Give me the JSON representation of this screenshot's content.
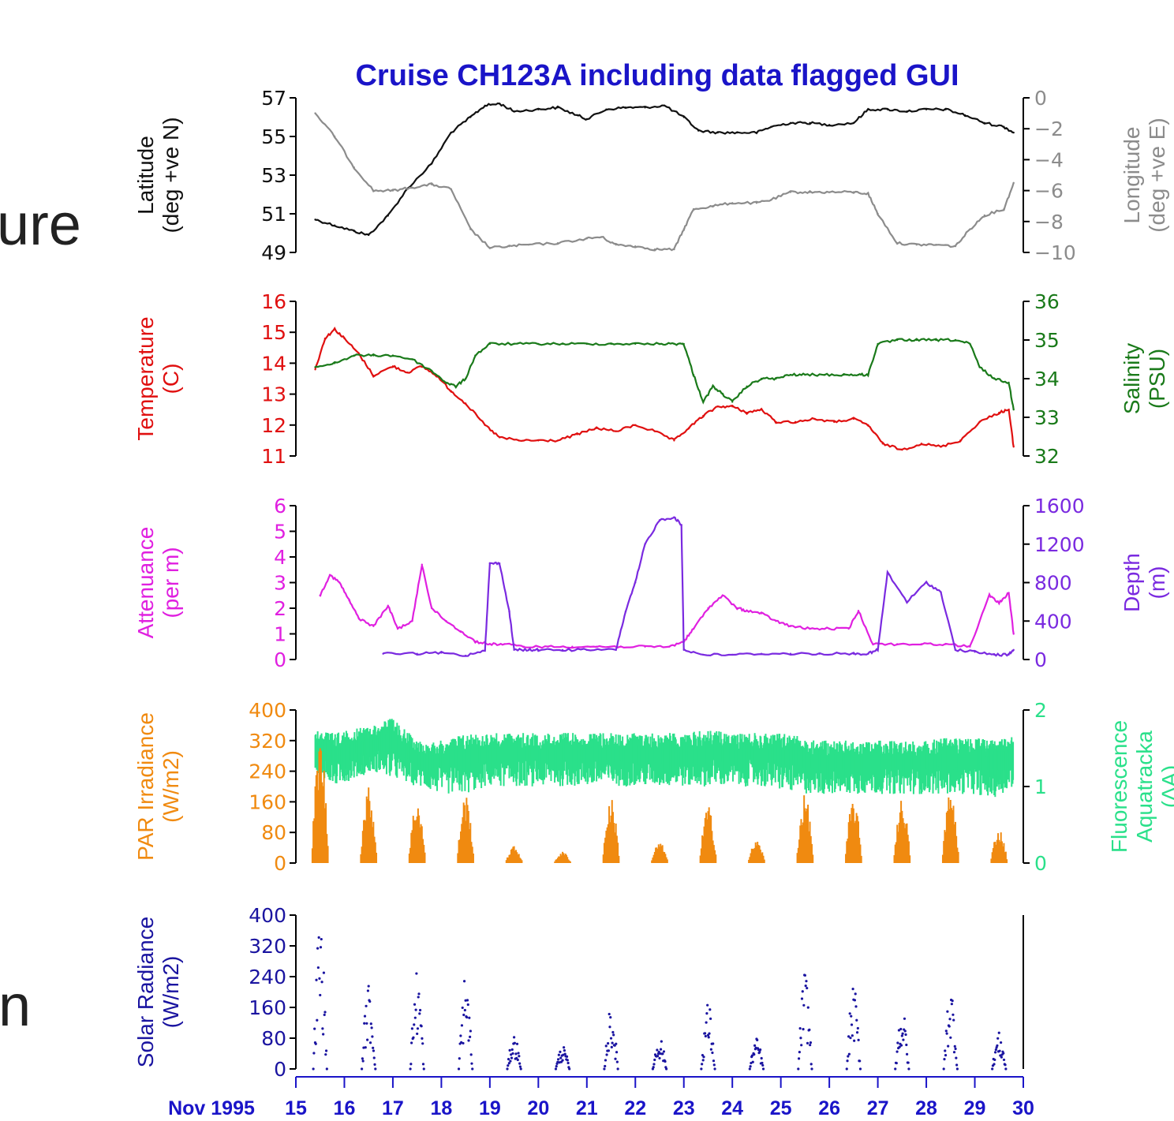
{
  "page_fragments": [
    "ure",
    "n"
  ],
  "chart_data": {
    "type": "line",
    "title": "Cruise CH123A including data flagged GUI",
    "x_axis": {
      "label": "Nov 1995",
      "ticks": [
        "15",
        "16",
        "17",
        "18",
        "19",
        "20",
        "21",
        "22",
        "23",
        "24",
        "25",
        "26",
        "27",
        "28",
        "29",
        "30"
      ],
      "range": [
        15,
        30
      ]
    },
    "panels": [
      {
        "left": {
          "label": [
            "Latitude",
            "(deg +ve N)"
          ],
          "color": "#111111",
          "range": [
            49,
            57
          ],
          "ticks": [
            "57",
            "55",
            "53",
            "51",
            "49"
          ],
          "tick_values": [
            57,
            55,
            53,
            51,
            49
          ]
        },
        "right": {
          "label": [
            "Longitude",
            "(deg +ve E)"
          ],
          "color": "#8c8c8c",
          "range": [
            -10,
            0
          ],
          "ticks": [
            "0",
            "−2",
            "−4",
            "−6",
            "−8",
            "−10"
          ],
          "tick_values": [
            0,
            -2,
            -4,
            -6,
            -8,
            -10
          ]
        },
        "series": [
          {
            "name": "Latitude",
            "axis": "left",
            "color": "#111111",
            "type": "line",
            "x": [
              15.4,
              15.8,
              16.2,
              16.5,
              16.9,
              17.3,
              17.8,
              18.2,
              18.6,
              18.9,
              19.2,
              19.5,
              20.0,
              20.4,
              20.8,
              21.0,
              21.4,
              21.8,
              22.2,
              22.6,
              23.0,
              23.3,
              23.7,
              24.1,
              24.5,
              24.8,
              25.2,
              25.6,
              26.0,
              26.5,
              26.8,
              27.2,
              27.6,
              28.0,
              28.4,
              28.8,
              29.2,
              29.6,
              29.8
            ],
            "y": [
              50.7,
              50.4,
              50.1,
              49.9,
              50.9,
              52.3,
              53.6,
              55.2,
              56.0,
              56.6,
              56.7,
              56.3,
              56.4,
              56.5,
              56.1,
              55.9,
              56.4,
              56.5,
              56.5,
              56.6,
              56.0,
              55.3,
              55.2,
              55.2,
              55.2,
              55.5,
              55.7,
              55.7,
              55.6,
              55.7,
              56.4,
              56.4,
              56.3,
              56.4,
              56.4,
              56.1,
              55.7,
              55.5,
              55.2
            ]
          },
          {
            "name": "Longitude",
            "axis": "right",
            "color": "#8c8c8c",
            "type": "line",
            "x": [
              15.4,
              15.8,
              16.2,
              16.6,
              17.0,
              17.4,
              17.8,
              18.2,
              18.6,
              19.0,
              19.4,
              19.8,
              20.4,
              21.0,
              21.3,
              21.6,
              22.0,
              22.4,
              22.8,
              23.0,
              23.2,
              23.6,
              24.0,
              24.5,
              24.8,
              25.2,
              25.6,
              26.0,
              26.5,
              26.8,
              27.0,
              27.4,
              27.8,
              28.2,
              28.6,
              28.9,
              29.2,
              29.6,
              29.8
            ],
            "y": [
              -1.0,
              -2.5,
              -4.5,
              -6.0,
              -6.0,
              -5.8,
              -5.6,
              -5.9,
              -8.5,
              -9.7,
              -9.6,
              -9.5,
              -9.4,
              -9.1,
              -9.0,
              -9.5,
              -9.6,
              -9.8,
              -9.8,
              -8.5,
              -7.2,
              -7.0,
              -6.8,
              -6.8,
              -6.6,
              -6.1,
              -6.1,
              -6.1,
              -6.1,
              -6.2,
              -7.5,
              -9.4,
              -9.5,
              -9.5,
              -9.6,
              -8.5,
              -7.6,
              -7.2,
              -5.5
            ]
          }
        ]
      },
      {
        "left": {
          "label": [
            "Temperature",
            "(C)"
          ],
          "color": "#e01010",
          "range": [
            11,
            16
          ],
          "ticks": [
            "16",
            "15",
            "14",
            "13",
            "12",
            "11"
          ],
          "tick_values": [
            16,
            15,
            14,
            13,
            12,
            11
          ]
        },
        "right": {
          "label": [
            "Salinity",
            "(PSU)"
          ],
          "color": "#1a7a1a",
          "range": [
            32,
            36
          ],
          "ticks": [
            "36",
            "35",
            "34",
            "33",
            "32"
          ],
          "tick_values": [
            36,
            35,
            34,
            33,
            32
          ]
        },
        "series": [
          {
            "name": "Temperature",
            "axis": "left",
            "color": "#e01010",
            "type": "line",
            "x": [
              15.4,
              15.6,
              15.8,
              16.0,
              16.3,
              16.6,
              17.0,
              17.3,
              17.6,
              17.9,
              18.2,
              18.5,
              18.9,
              19.2,
              19.6,
              20.0,
              20.4,
              20.8,
              21.2,
              21.6,
              22.0,
              22.4,
              22.8,
              23.1,
              23.4,
              23.7,
              24.0,
              24.3,
              24.6,
              24.9,
              25.3,
              25.7,
              26.1,
              26.5,
              26.8,
              27.1,
              27.5,
              27.9,
              28.3,
              28.7,
              29.1,
              29.5,
              29.7,
              29.8
            ],
            "y": [
              13.8,
              14.8,
              15.1,
              14.8,
              14.3,
              13.6,
              13.9,
              13.7,
              13.9,
              13.6,
              13.1,
              12.7,
              12.0,
              11.6,
              11.5,
              11.5,
              11.5,
              11.7,
              11.9,
              11.8,
              12.0,
              11.8,
              11.5,
              11.9,
              12.3,
              12.6,
              12.6,
              12.4,
              12.5,
              12.1,
              12.1,
              12.2,
              12.1,
              12.2,
              12.0,
              11.4,
              11.2,
              11.4,
              11.3,
              11.5,
              12.1,
              12.4,
              12.5,
              11.3
            ]
          },
          {
            "name": "Salinity",
            "axis": "right",
            "color": "#1a7a1a",
            "type": "line",
            "x": [
              15.4,
              15.8,
              16.2,
              16.6,
              17.0,
              17.4,
              17.8,
              18.1,
              18.3,
              18.5,
              18.7,
              19.0,
              19.5,
              20.0,
              20.5,
              21.0,
              21.5,
              22.0,
              22.5,
              22.8,
              23.0,
              23.2,
              23.4,
              23.6,
              23.8,
              24.0,
              24.3,
              24.6,
              24.9,
              25.2,
              25.5,
              25.9,
              26.3,
              26.6,
              26.8,
              27.0,
              27.4,
              27.8,
              28.2,
              28.6,
              28.9,
              29.1,
              29.4,
              29.7,
              29.8
            ],
            "y": [
              34.3,
              34.4,
              34.6,
              34.6,
              34.6,
              34.5,
              34.2,
              33.9,
              33.8,
              34.0,
              34.6,
              34.9,
              34.9,
              34.9,
              34.9,
              34.9,
              34.9,
              34.9,
              34.9,
              34.9,
              34.9,
              34.1,
              33.4,
              33.8,
              33.6,
              33.4,
              33.8,
              34.0,
              34.0,
              34.1,
              34.1,
              34.1,
              34.1,
              34.1,
              34.1,
              34.9,
              35.0,
              35.0,
              35.0,
              35.0,
              34.9,
              34.3,
              34.0,
              33.9,
              33.2
            ]
          }
        ]
      },
      {
        "left": {
          "label": [
            "Attenuance",
            "(per m)"
          ],
          "color": "#e020e0",
          "range": [
            0,
            6
          ],
          "ticks": [
            "6",
            "5",
            "4",
            "3",
            "2",
            "1",
            "0"
          ],
          "tick_values": [
            6,
            5,
            4,
            3,
            2,
            1,
            0
          ]
        },
        "right": {
          "label": [
            "Depth",
            "(m)"
          ],
          "color": "#7a2ae0",
          "range": [
            0,
            1600
          ],
          "ticks": [
            "1600",
            "1200",
            "800",
            "400",
            "0"
          ],
          "tick_values": [
            1600,
            1200,
            800,
            400,
            0
          ]
        },
        "series": [
          {
            "name": "Attenuance",
            "axis": "left",
            "color": "#e020e0",
            "type": "line",
            "x": [
              15.5,
              15.7,
              15.9,
              16.1,
              16.3,
              16.6,
              16.9,
              17.1,
              17.4,
              17.6,
              17.8,
              18.1,
              18.4,
              18.7,
              19.0,
              19.3,
              19.7,
              20.2,
              20.7,
              21.2,
              21.7,
              22.2,
              22.7,
              23.0,
              23.2,
              23.5,
              23.8,
              24.1,
              24.3,
              24.6,
              24.9,
              25.2,
              25.6,
              26.0,
              26.4,
              26.6,
              26.9,
              27.4,
              27.9,
              28.4,
              28.9,
              29.3,
              29.5,
              29.7,
              29.8
            ],
            "y": [
              2.5,
              3.3,
              3.0,
              2.3,
              1.6,
              1.3,
              2.1,
              1.2,
              1.5,
              3.7,
              2.0,
              1.5,
              1.1,
              0.7,
              0.6,
              0.6,
              0.5,
              0.5,
              0.5,
              0.5,
              0.5,
              0.5,
              0.5,
              0.7,
              1.2,
              2.0,
              2.5,
              2.0,
              1.9,
              1.8,
              1.5,
              1.3,
              1.2,
              1.2,
              1.2,
              1.9,
              0.6,
              0.6,
              0.6,
              0.6,
              0.5,
              2.5,
              2.2,
              2.6,
              1.0
            ]
          },
          {
            "name": "Depth",
            "axis": "right",
            "color": "#7a2ae0",
            "type": "line",
            "x": [
              16.8,
              17.5,
              18.0,
              18.5,
              18.9,
              19.0,
              19.2,
              19.4,
              19.5,
              19.8,
              20.0,
              20.5,
              21.0,
              21.6,
              21.8,
              22.0,
              22.2,
              22.5,
              22.8,
              22.95,
              23.0,
              23.4,
              24.0,
              24.6,
              25.2,
              25.8,
              26.5,
              26.8,
              27.0,
              27.2,
              27.6,
              28.0,
              28.3,
              28.6,
              29.0,
              29.4,
              29.7,
              29.8
            ],
            "y": [
              60,
              60,
              70,
              40,
              100,
              1000,
              1000,
              500,
              100,
              100,
              100,
              100,
              100,
              100,
              500,
              800,
              1200,
              1450,
              1480,
              1400,
              100,
              50,
              50,
              60,
              60,
              60,
              60,
              60,
              100,
              900,
              600,
              800,
              700,
              100,
              80,
              50,
              50,
              100
            ]
          }
        ]
      },
      {
        "left": {
          "label": [
            "PAR Irradiance",
            "(W/m2)"
          ],
          "color": "#f08a10",
          "range": [
            0,
            400
          ],
          "ticks": [
            "400",
            "320",
            "240",
            "160",
            "80",
            "0"
          ],
          "tick_values": [
            400,
            320,
            240,
            160,
            80,
            0
          ]
        },
        "right": {
          "label": [
            "Fluorescence",
            "Aquatracka",
            "(∆A)"
          ],
          "color": "#2ae08a",
          "range": [
            0,
            2
          ],
          "ticks": [
            "2",
            "1",
            "0"
          ],
          "tick_values": [
            2,
            1,
            0
          ]
        },
        "series": [
          {
            "name": "Fluorescence",
            "axis": "right",
            "color": "#2ae08a",
            "type": "band",
            "x": [
              15.4,
              15.8,
              16.2,
              16.6,
              17.0,
              17.5,
              18.0,
              18.5,
              19.0,
              19.5,
              20.0,
              20.5,
              21.0,
              21.5,
              22.0,
              22.5,
              23.0,
              23.5,
              24.0,
              24.5,
              25.0,
              25.5,
              26.0,
              26.5,
              27.0,
              27.5,
              28.0,
              28.5,
              29.0,
              29.4,
              29.8
            ],
            "low": [
              1.2,
              1.0,
              1.1,
              1.2,
              1.1,
              1.0,
              0.9,
              0.9,
              1.0,
              1.0,
              1.0,
              1.0,
              1.0,
              1.0,
              1.0,
              1.0,
              1.0,
              1.0,
              1.0,
              1.0,
              0.95,
              0.9,
              0.9,
              0.9,
              0.9,
              0.9,
              0.9,
              0.9,
              0.9,
              0.85,
              1.0
            ],
            "high": [
              1.75,
              1.7,
              1.75,
              1.8,
              1.9,
              1.6,
              1.6,
              1.7,
              1.7,
              1.7,
              1.7,
              1.7,
              1.7,
              1.7,
              1.7,
              1.7,
              1.7,
              1.75,
              1.7,
              1.7,
              1.7,
              1.65,
              1.6,
              1.6,
              1.6,
              1.6,
              1.6,
              1.65,
              1.65,
              1.6,
              1.65
            ]
          },
          {
            "name": "PAR Irradiance",
            "axis": "left",
            "color": "#f08a10",
            "type": "daily_peaks",
            "peaks_x": [
              15.5,
              16.5,
              17.5,
              18.5,
              19.5,
              20.5,
              21.5,
              22.5,
              23.5,
              24.5,
              25.5,
              26.5,
              27.5,
              28.5,
              29.5
            ],
            "peaks_y": [
              330,
              200,
              170,
              180,
              45,
              30,
              170,
              55,
              150,
              60,
              180,
              170,
              170,
              190,
              90
            ]
          }
        ]
      },
      {
        "left": {
          "label": [
            "Solar Radiance",
            "(W/m2)"
          ],
          "color": "#1a14a0",
          "range": [
            0,
            400
          ],
          "ticks": [
            "400",
            "320",
            "240",
            "160",
            "80",
            "0"
          ],
          "tick_values": [
            400,
            320,
            240,
            160,
            80,
            0
          ]
        },
        "series": [
          {
            "name": "Solar Radiance",
            "axis": "left",
            "color": "#1a14a0",
            "type": "daily_dots",
            "peaks_x": [
              15.5,
              16.5,
              17.5,
              18.5,
              19.5,
              20.5,
              21.5,
              22.5,
              23.5,
              24.5,
              25.5,
              26.5,
              27.5,
              28.5,
              29.5
            ],
            "peaks_y": [
              395,
              225,
              265,
              250,
              90,
              60,
              160,
              85,
              175,
              80,
              260,
              220,
              160,
              220,
              95
            ]
          }
        ]
      }
    ]
  }
}
